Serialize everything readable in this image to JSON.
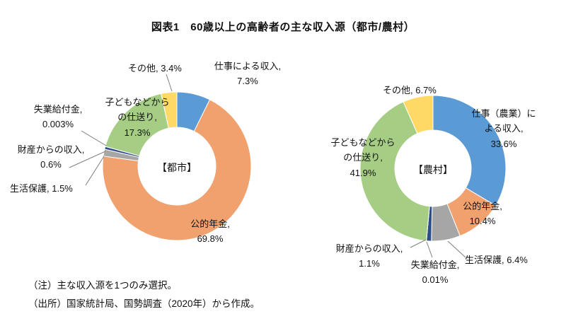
{
  "title": "図表1　60歳以上の高齢者の主な収入源（都市/農村）",
  "notes": [
    "（注）主な収入源を1つのみ選択。",
    "（出所）国家統計局、国勢調査（2020年）から作成。"
  ],
  "chart_data": [
    {
      "type": "pie",
      "subtype": "donut",
      "title": "【都市】",
      "unit": "%",
      "legend": "none",
      "labels": [
        "仕事による収入",
        "公的年金",
        "生活保護",
        "財産からの収入",
        "失業給付金",
        "子どもなどからの仕送り",
        "その他"
      ],
      "values": [
        7.3,
        69.8,
        1.5,
        0.6,
        0.003,
        17.3,
        3.4
      ],
      "colors": [
        "#5B9BD5",
        "#F1A16E",
        "#A6A6A6",
        "#2E4D87",
        "#4472C4",
        "#A5CD84",
        "#FFD966"
      ],
      "callouts": [
        "仕事による収入,\n7.3%",
        "公的年金,\n69.8%",
        "生活保護, 1.5%",
        "財産からの収入,\n0.6%",
        "失業給付金,\n0.003%",
        "子どもなどから\nの仕送り,\n17.3%",
        "その他, 3.4%"
      ]
    },
    {
      "type": "pie",
      "subtype": "donut",
      "title": "【農村】",
      "unit": "%",
      "legend": "none",
      "labels": [
        "仕事（農業）による収入",
        "公的年金",
        "生活保護",
        "財産からの収入",
        "失業給付金",
        "子どもなどからの仕送り",
        "その他"
      ],
      "values": [
        33.6,
        10.4,
        6.4,
        1.1,
        0.01,
        41.9,
        6.7
      ],
      "colors": [
        "#5B9BD5",
        "#F1A16E",
        "#A6A6A6",
        "#2E4D87",
        "#4472C4",
        "#A5CD84",
        "#FFD966"
      ],
      "callouts": [
        "仕事（農業）に\nよる収入,\n33.6%",
        "公的年金,\n10.4%",
        "生活保護, 6.4%",
        "財産からの収入,\n1.1%",
        "失業給付金,\n0.01%",
        "子どもなどから\nの仕送り,\n41.9%",
        "その他, 6.7%"
      ]
    }
  ]
}
